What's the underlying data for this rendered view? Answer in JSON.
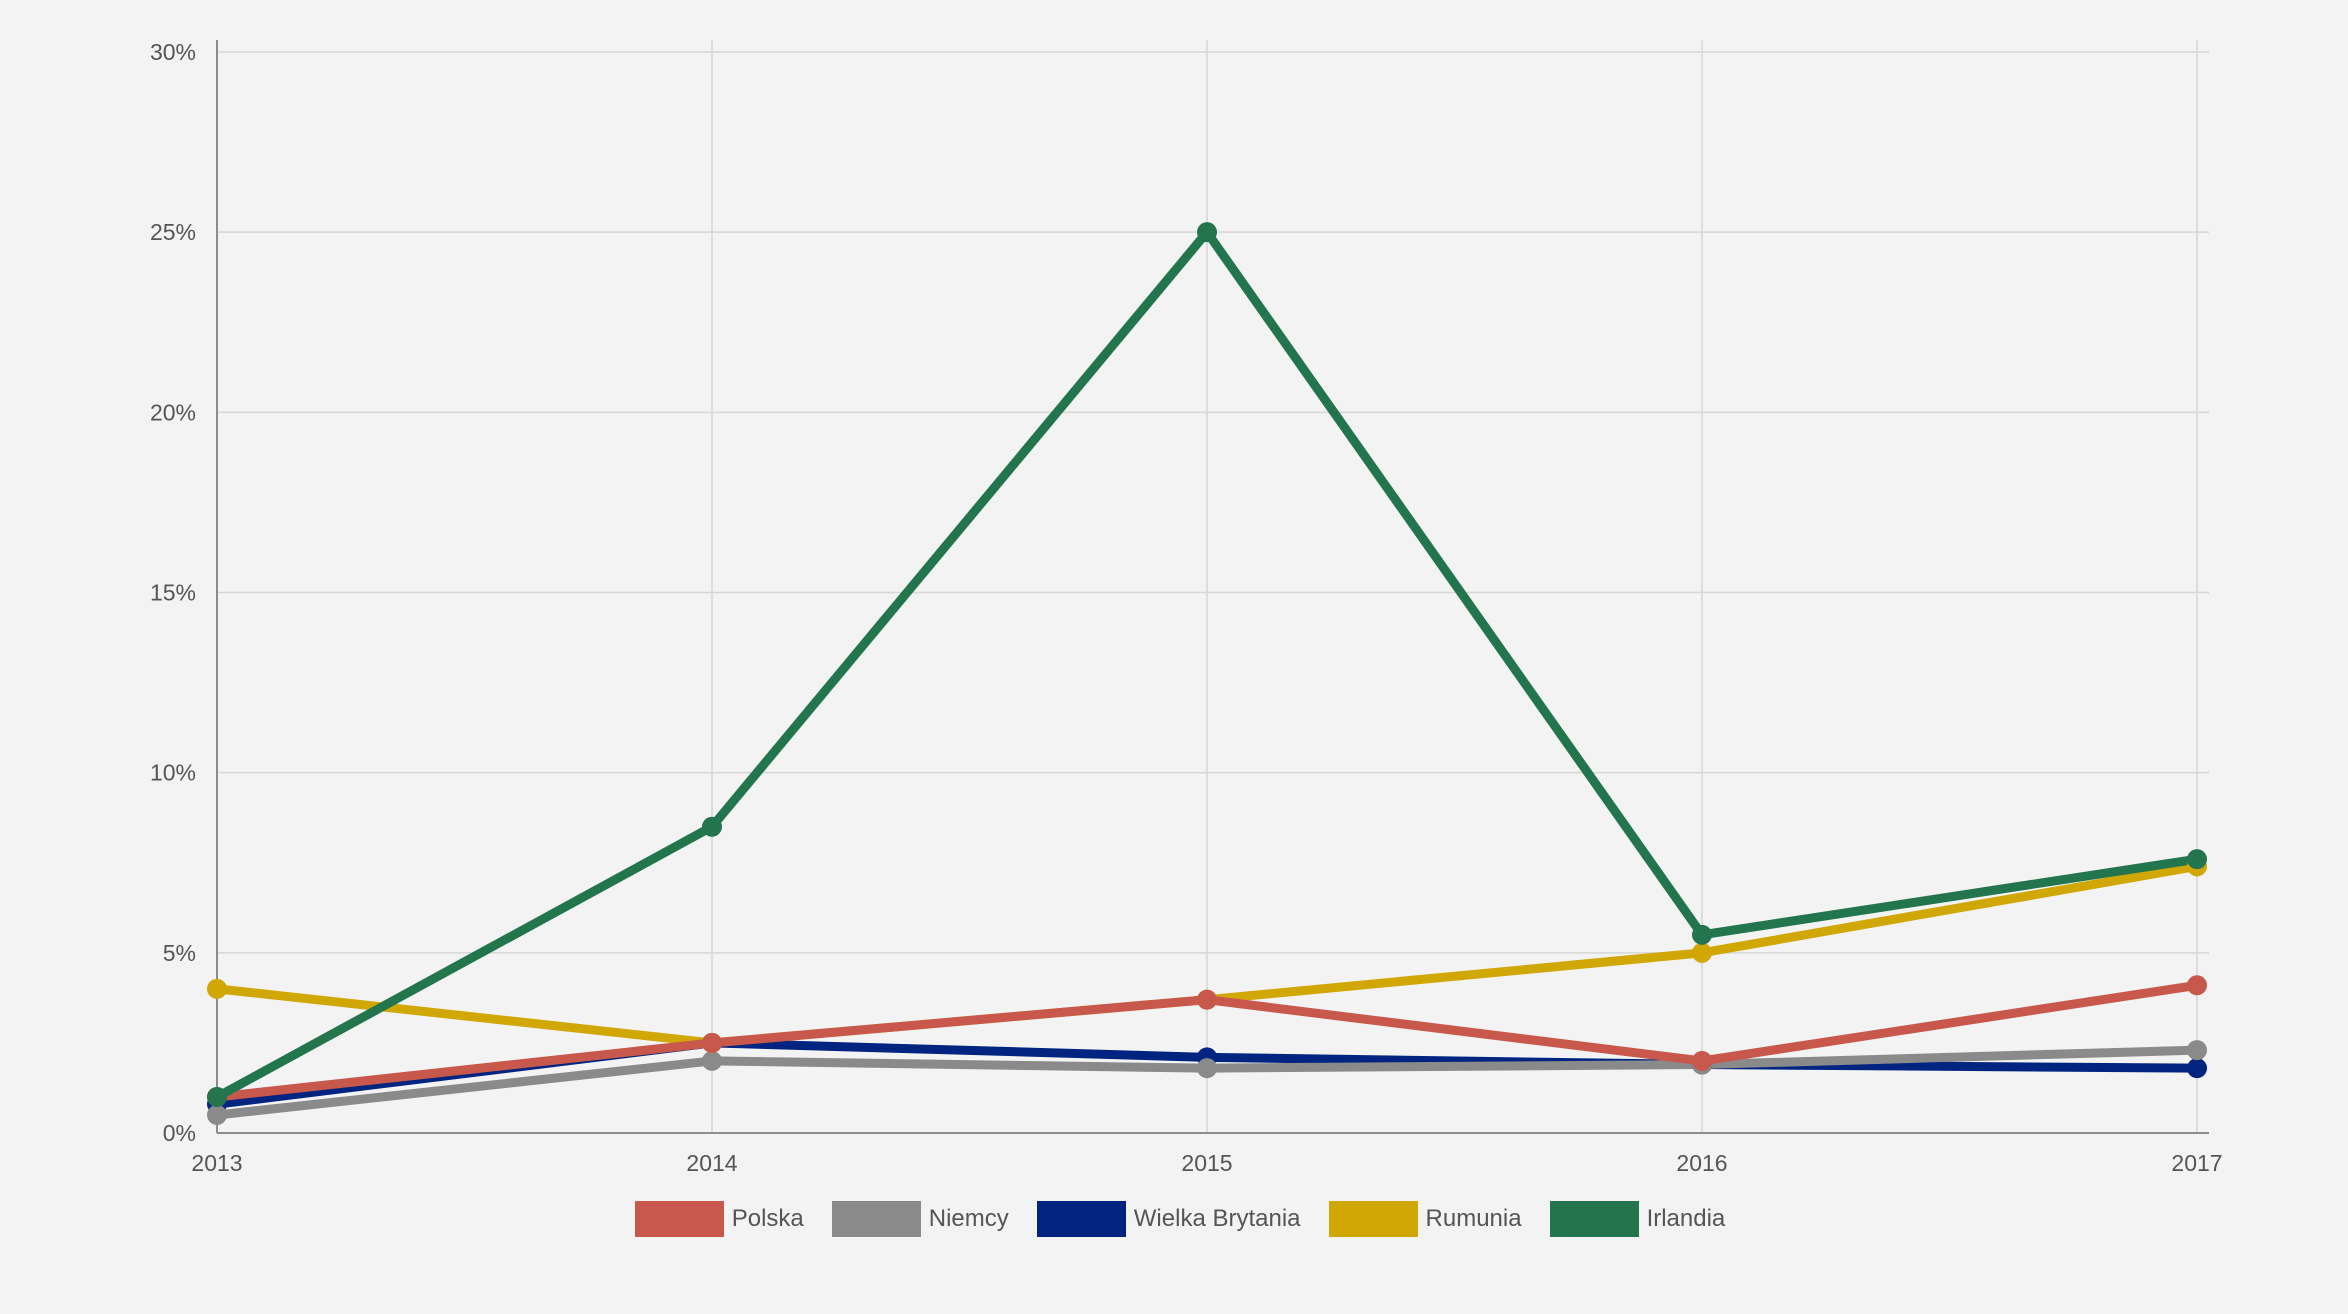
{
  "chart_data": {
    "type": "line",
    "x": [
      "2013",
      "2014",
      "2015",
      "2016",
      "2017"
    ],
    "y_ticks": [
      "0%",
      "5%",
      "10%",
      "15%",
      "20%",
      "25%",
      "30%"
    ],
    "ylim": [
      0,
      30
    ],
    "grid": true,
    "legend_position": "bottom-center",
    "series": [
      {
        "name": "Polska",
        "color": "#c8574c",
        "values": [
          1.0,
          2.5,
          3.7,
          2.0,
          4.1
        ]
      },
      {
        "name": "Niemcy",
        "color": "#8a8a8a",
        "values": [
          0.5,
          2.0,
          1.8,
          1.9,
          2.3
        ]
      },
      {
        "name": "Wielka Brytania",
        "color": "#022481",
        "values": [
          0.8,
          2.5,
          2.1,
          1.9,
          1.8
        ]
      },
      {
        "name": "Rumunia",
        "color": "#d0a705",
        "values": [
          4.0,
          2.5,
          3.7,
          5.0,
          7.4
        ]
      },
      {
        "name": "Irlandia",
        "color": "#23754e",
        "values": [
          1.0,
          8.5,
          25.0,
          5.5,
          7.6
        ]
      }
    ]
  }
}
